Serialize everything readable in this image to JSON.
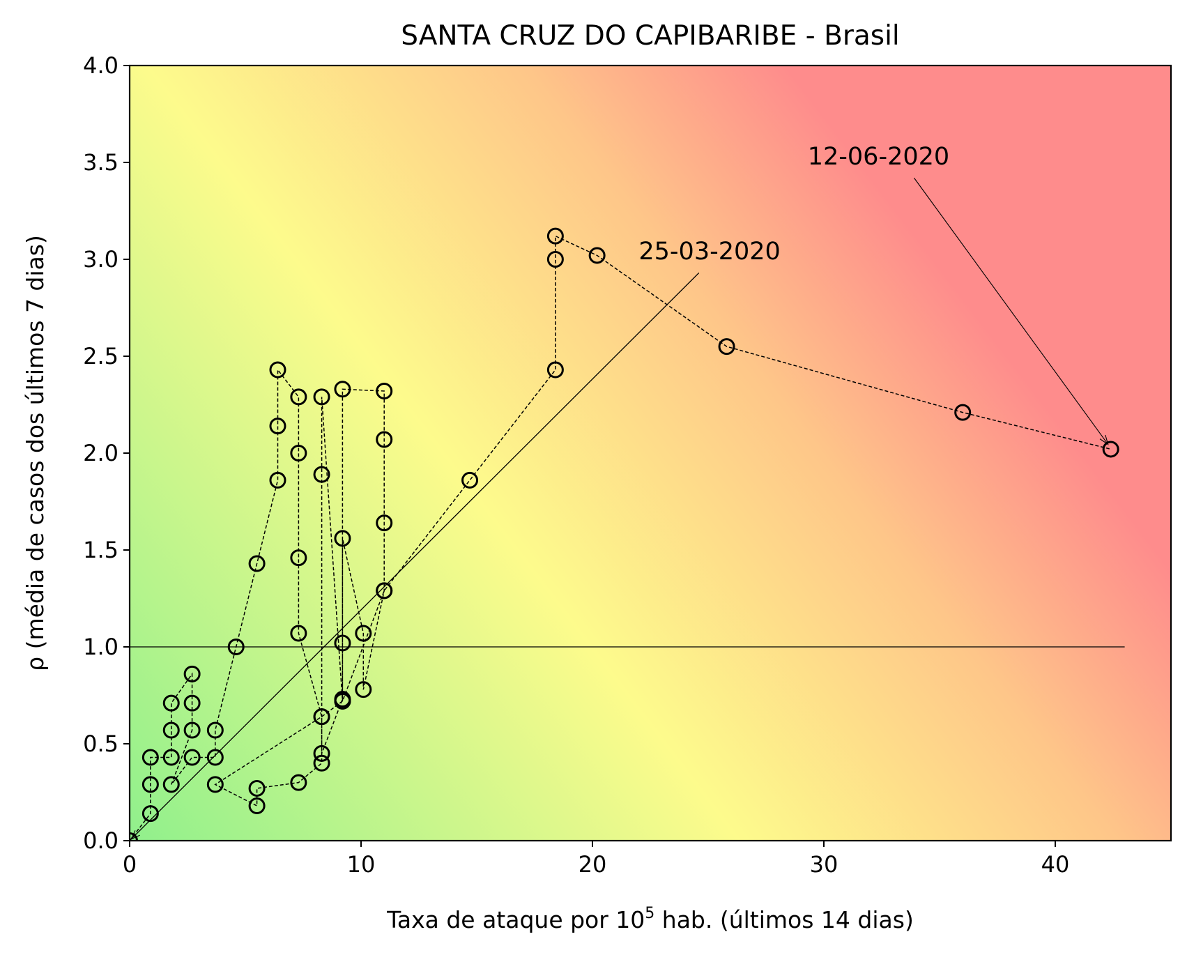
{
  "chart_data": {
    "type": "scatter",
    "title": "SANTA CRUZ DO CAPIBARIBE - Brasil",
    "xlabel_main": "Taxa de ataque por 10",
    "xlabel_sup": "5",
    "xlabel_rest": " hab. (últimos 14 dias)",
    "ylabel": "ρ (média de casos dos últimos 7 dias)",
    "xlim": [
      0,
      45
    ],
    "ylim": [
      0,
      4
    ],
    "xticks": [
      0,
      10,
      20,
      30,
      40
    ],
    "xtick_labels": [
      "0",
      "10",
      "20",
      "30",
      "40"
    ],
    "yticks": [
      0,
      0.5,
      1,
      1.5,
      2,
      2.5,
      3,
      3.5,
      4
    ],
    "ytick_labels": [
      "0.0",
      "0.5",
      "1.0",
      "1.5",
      "2.0",
      "2.5",
      "3.0",
      "3.5",
      "4.0"
    ],
    "background": "green (low) to yellow to red (high) risk gradient",
    "colors": {
      "green": "#90f08c",
      "yellow": "#fdfb8c",
      "orange": "#fec689",
      "red": "#fe8c8c",
      "marker_edge": "#000000"
    },
    "reference_line": {
      "y": 1.0,
      "x_range": [
        0,
        43
      ]
    },
    "trend_line": {
      "from": [
        0,
        0
      ],
      "to": [
        24.6,
        2.93
      ]
    },
    "series": [
      {
        "x": [
          0,
          0.9,
          0.9,
          0.9,
          1.8,
          1.8,
          1.8,
          2.7,
          2.7,
          2.7,
          1.8,
          2.7,
          3.7,
          3.7,
          4.6,
          5.5,
          6.4,
          6.4,
          6.4,
          7.3,
          7.3,
          7.3,
          7.3,
          8.3,
          8.3,
          9.2,
          9.2,
          9.2,
          10.1,
          10.1,
          11.0,
          11.0,
          11.0,
          11.0,
          9.2,
          9.2,
          8.3,
          8.3,
          8.3,
          7.3,
          5.5,
          5.5,
          3.7,
          8.3,
          9.2,
          11.0,
          14.7,
          18.4,
          18.4,
          18.4,
          20.2,
          25.8,
          36.0,
          42.4
        ],
        "y": [
          0,
          0.14,
          0.29,
          0.43,
          0.43,
          0.57,
          0.71,
          0.86,
          0.71,
          0.57,
          0.29,
          0.43,
          0.43,
          0.57,
          1.0,
          1.43,
          1.86,
          2.14,
          2.43,
          2.29,
          2.0,
          1.46,
          1.07,
          0.64,
          0.45,
          0.73,
          1.02,
          1.56,
          1.07,
          0.78,
          1.29,
          1.64,
          2.07,
          2.32,
          2.33,
          0.72,
          2.29,
          1.89,
          0.4,
          0.3,
          0.27,
          0.18,
          0.29,
          0.64,
          0.72,
          1.29,
          1.86,
          2.43,
          3.0,
          3.12,
          3.02,
          2.55,
          2.21,
          2.02
        ]
      }
    ],
    "annotations": [
      {
        "text": "25-03-2020",
        "point": [
          0,
          0
        ]
      },
      {
        "text": "12-06-2020",
        "point": [
          42.4,
          2.02
        ]
      }
    ]
  }
}
